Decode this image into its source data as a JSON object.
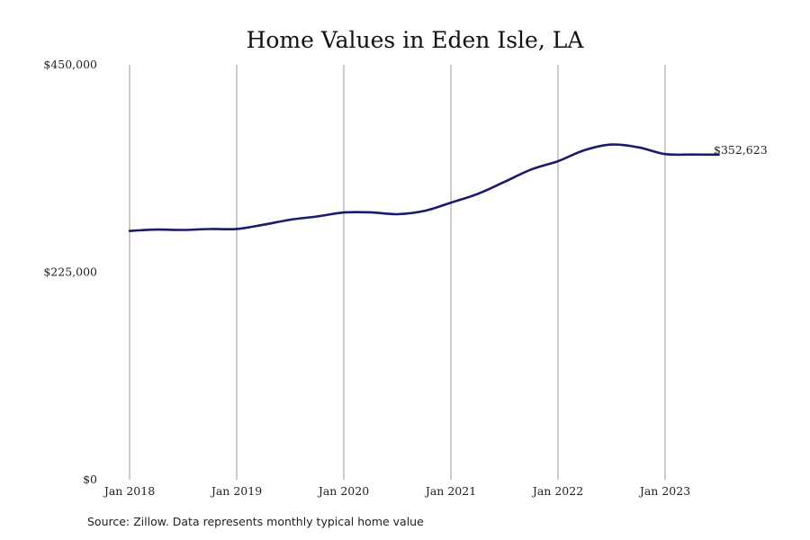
{
  "chart_data": {
    "type": "line",
    "title": "Home Values in Eden Isle, LA",
    "xlabel": "",
    "ylabel": "",
    "x_tick_labels": [
      "Jan 2018",
      "Jan 2019",
      "Jan 2020",
      "Jan 2021",
      "Jan 2022",
      "Jan 2023"
    ],
    "y_tick_labels": [
      "$0",
      "$225,000",
      "$450,000"
    ],
    "y_ticks": [
      0,
      225000,
      450000
    ],
    "ylim": [
      0,
      450000
    ],
    "xlim": [
      "2018-01",
      "2023-10"
    ],
    "grid": "vertical lines at each January",
    "series": [
      {
        "color": "#1a1a6e",
        "points": [
          [
            "2018-01",
            269800
          ],
          [
            "2018-04",
            271300
          ],
          [
            "2018-07",
            270900
          ],
          [
            "2018-10",
            271900
          ],
          [
            "2019-01",
            272000
          ],
          [
            "2019-04",
            276500
          ],
          [
            "2019-07",
            282000
          ],
          [
            "2019-10",
            285500
          ],
          [
            "2020-01",
            289800
          ],
          [
            "2020-04",
            290000
          ],
          [
            "2020-07",
            288000
          ],
          [
            "2020-10",
            291500
          ],
          [
            "2021-01",
            300500
          ],
          [
            "2021-04",
            310000
          ],
          [
            "2021-07",
            323000
          ],
          [
            "2021-10",
            336500
          ],
          [
            "2022-01",
            345500
          ],
          [
            "2022-04",
            357500
          ],
          [
            "2022-07",
            363500
          ],
          [
            "2022-10",
            360500
          ],
          [
            "2023-01",
            353200
          ],
          [
            "2023-04",
            352700
          ],
          [
            "2023-07",
            352623
          ]
        ]
      }
    ],
    "end_label": "$352,623"
  },
  "source_text": "Source: Zillow. Data represents monthly typical home value"
}
